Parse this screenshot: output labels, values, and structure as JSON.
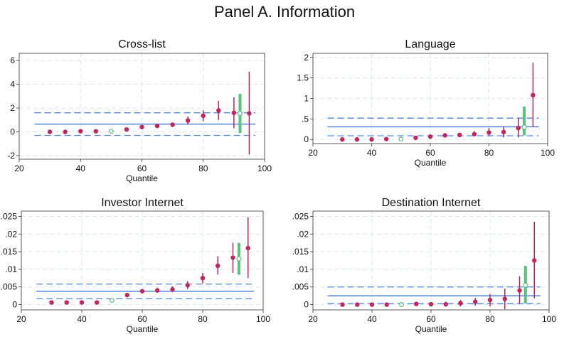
{
  "title": "Panel A. Information",
  "colors": {
    "point": "#c0255e",
    "ci": "#b4245e",
    "hollow": "#5cc47e",
    "highlight": "#56c47b",
    "line": "#4f86e0",
    "grid": "#dfe6ee"
  },
  "chart_data": [
    {
      "type": "scatter",
      "title": "Cross-list",
      "xlabel": "Quantile",
      "ylabel": "",
      "xlim": [
        20,
        100
      ],
      "ylim": [
        -2.3,
        6.6
      ],
      "xticks": [
        {
          "v": 20,
          "label": "20"
        },
        {
          "v": 40,
          "label": "40"
        },
        {
          "v": 60,
          "label": "60"
        },
        {
          "v": 80,
          "label": "80"
        },
        {
          "v": 100,
          "label": "100"
        }
      ],
      "yticks": [
        {
          "v": -2,
          "label": "-2"
        },
        {
          "v": 0,
          "label": "0"
        },
        {
          "v": 2,
          "label": "2"
        },
        {
          "v": 4,
          "label": "4"
        },
        {
          "v": 6,
          "label": "6"
        }
      ],
      "hline": {
        "y": 0.65,
        "lo": -0.3,
        "hi": 1.6,
        "x0": 25,
        "x1": 97
      },
      "points": [
        {
          "x": 30,
          "y": 0,
          "lo": 0,
          "hi": 0
        },
        {
          "x": 35,
          "y": 0,
          "lo": 0,
          "hi": 0
        },
        {
          "x": 40,
          "y": 0.05,
          "lo": 0.05,
          "hi": 0.05
        },
        {
          "x": 45,
          "y": 0.05,
          "lo": 0.05,
          "hi": 0.05
        },
        {
          "x": 50,
          "y": 0.05,
          "lo": 0.05,
          "hi": 0.05,
          "hollow": true
        },
        {
          "x": 55,
          "y": 0.2,
          "lo": 0.1,
          "hi": 0.3
        },
        {
          "x": 60,
          "y": 0.4,
          "lo": 0.3,
          "hi": 0.5
        },
        {
          "x": 65,
          "y": 0.5,
          "lo": 0.4,
          "hi": 0.6
        },
        {
          "x": 70,
          "y": 0.6,
          "lo": 0.45,
          "hi": 0.75
        },
        {
          "x": 75,
          "y": 0.95,
          "lo": 0.6,
          "hi": 1.3
        },
        {
          "x": 80,
          "y": 1.35,
          "lo": 0.9,
          "hi": 1.8
        },
        {
          "x": 85,
          "y": 1.8,
          "lo": 1.0,
          "hi": 2.6
        },
        {
          "x": 90,
          "y": 1.6,
          "lo": 0.3,
          "hi": 2.9
        },
        {
          "x": 92,
          "y": 1.55,
          "lo": -0.1,
          "hi": 3.2,
          "highlight": true
        },
        {
          "x": 95,
          "y": 1.55,
          "lo": -1.9,
          "hi": 5.05
        }
      ]
    },
    {
      "type": "scatter",
      "title": "Language",
      "xlabel": "Quantile",
      "ylabel": "",
      "xlim": [
        20,
        100
      ],
      "ylim": [
        -0.1,
        2.1
      ],
      "xticks": [
        {
          "v": 20,
          "label": "20"
        },
        {
          "v": 40,
          "label": "40"
        },
        {
          "v": 60,
          "label": "60"
        },
        {
          "v": 80,
          "label": "80"
        },
        {
          "v": 100,
          "label": "100"
        }
      ],
      "yticks": [
        {
          "v": 0,
          "label": "0"
        },
        {
          "v": 0.5,
          "label": ".5"
        },
        {
          "v": 1,
          "label": "1"
        },
        {
          "v": 1.5,
          "label": "1.5"
        },
        {
          "v": 2,
          "label": "2"
        }
      ],
      "hline": {
        "y": 0.31,
        "lo": 0.09,
        "hi": 0.52,
        "x0": 25,
        "x1": 97
      },
      "points": [
        {
          "x": 30,
          "y": 0,
          "lo": 0,
          "hi": 0
        },
        {
          "x": 35,
          "y": 0,
          "lo": 0,
          "hi": 0
        },
        {
          "x": 40,
          "y": 0,
          "lo": 0,
          "hi": 0
        },
        {
          "x": 45,
          "y": 0.01,
          "lo": 0.01,
          "hi": 0.01
        },
        {
          "x": 50,
          "y": 0.01,
          "lo": 0.01,
          "hi": 0.01,
          "hollow": true
        },
        {
          "x": 55,
          "y": 0.04,
          "lo": 0.03,
          "hi": 0.05
        },
        {
          "x": 60,
          "y": 0.07,
          "lo": 0.06,
          "hi": 0.08
        },
        {
          "x": 65,
          "y": 0.1,
          "lo": 0.08,
          "hi": 0.12
        },
        {
          "x": 70,
          "y": 0.11,
          "lo": 0.08,
          "hi": 0.14
        },
        {
          "x": 75,
          "y": 0.13,
          "lo": 0.08,
          "hi": 0.2
        },
        {
          "x": 80,
          "y": 0.17,
          "lo": 0.08,
          "hi": 0.28
        },
        {
          "x": 85,
          "y": 0.18,
          "lo": 0.05,
          "hi": 0.32
        },
        {
          "x": 90,
          "y": 0.28,
          "lo": 0.05,
          "hi": 0.52
        },
        {
          "x": 92,
          "y": 0.3,
          "lo": 0.1,
          "hi": 0.8,
          "highlight": true
        },
        {
          "x": 95,
          "y": 1.08,
          "lo": 0.3,
          "hi": 1.87
        }
      ]
    },
    {
      "type": "scatter",
      "title": "Investor Internet",
      "xlabel": "Quantile",
      "ylabel": "",
      "xlim": [
        20,
        100
      ],
      "ylim": [
        -0.0015,
        0.0265
      ],
      "xticks": [
        {
          "v": 20,
          "label": "20"
        },
        {
          "v": 40,
          "label": "40"
        },
        {
          "v": 60,
          "label": "60"
        },
        {
          "v": 80,
          "label": "80"
        },
        {
          "v": 100,
          "label": "100"
        }
      ],
      "yticks": [
        {
          "v": 0,
          "label": "0"
        },
        {
          "v": 0.005,
          "label": ".005"
        },
        {
          "v": 0.01,
          "label": ".01"
        },
        {
          "v": 0.015,
          "label": ".015"
        },
        {
          "v": 0.02,
          "label": ".02"
        },
        {
          "v": 0.025,
          "label": ".025"
        }
      ],
      "hline": {
        "y": 0.0038,
        "lo": 0.0017,
        "hi": 0.0058,
        "x0": 25,
        "x1": 97
      },
      "points": [
        {
          "x": 30,
          "y": 0.0006,
          "lo": 0.0006,
          "hi": 0.0006
        },
        {
          "x": 35,
          "y": 0.0006,
          "lo": 0.0006,
          "hi": 0.0006
        },
        {
          "x": 40,
          "y": 0.0006,
          "lo": 0.0006,
          "hi": 0.0006
        },
        {
          "x": 45,
          "y": 0.0006,
          "lo": 0.0006,
          "hi": 0.0006
        },
        {
          "x": 50,
          "y": 0.0012,
          "lo": 0.0012,
          "hi": 0.0012,
          "hollow": true
        },
        {
          "x": 55,
          "y": 0.0027,
          "lo": 0.0024,
          "hi": 0.003
        },
        {
          "x": 60,
          "y": 0.0038,
          "lo": 0.0034,
          "hi": 0.0042
        },
        {
          "x": 65,
          "y": 0.004,
          "lo": 0.0034,
          "hi": 0.0048
        },
        {
          "x": 70,
          "y": 0.0043,
          "lo": 0.0035,
          "hi": 0.0052
        },
        {
          "x": 75,
          "y": 0.0055,
          "lo": 0.0044,
          "hi": 0.0066
        },
        {
          "x": 80,
          "y": 0.0075,
          "lo": 0.006,
          "hi": 0.009
        },
        {
          "x": 85,
          "y": 0.011,
          "lo": 0.0085,
          "hi": 0.0137
        },
        {
          "x": 90,
          "y": 0.0133,
          "lo": 0.009,
          "hi": 0.0175
        },
        {
          "x": 92,
          "y": 0.013,
          "lo": 0.0085,
          "hi": 0.0175,
          "highlight": true
        },
        {
          "x": 95,
          "y": 0.016,
          "lo": 0.0075,
          "hi": 0.0248
        }
      ]
    },
    {
      "type": "scatter",
      "title": "Destination Internet",
      "xlabel": "Quantile",
      "ylabel": "",
      "xlim": [
        20,
        100
      ],
      "ylim": [
        -0.0015,
        0.0265
      ],
      "xticks": [
        {
          "v": 20,
          "label": "20"
        },
        {
          "v": 40,
          "label": "40"
        },
        {
          "v": 60,
          "label": "60"
        },
        {
          "v": 80,
          "label": "80"
        },
        {
          "v": 100,
          "label": "100"
        }
      ],
      "yticks": [
        {
          "v": 0,
          "label": "0"
        },
        {
          "v": 0.005,
          "label": ".005"
        },
        {
          "v": 0.01,
          "label": ".01"
        },
        {
          "v": 0.015,
          "label": ".015"
        },
        {
          "v": 0.02,
          "label": ".02"
        },
        {
          "v": 0.025,
          "label": ".025"
        }
      ],
      "hline": {
        "y": 0.0025,
        "lo": 0.0003,
        "hi": 0.005,
        "x0": 25,
        "x1": 97
      },
      "points": [
        {
          "x": 30,
          "y": 0,
          "lo": 0,
          "hi": 0
        },
        {
          "x": 35,
          "y": 0,
          "lo": 0,
          "hi": 0
        },
        {
          "x": 40,
          "y": 0,
          "lo": 0,
          "hi": 0
        },
        {
          "x": 45,
          "y": 0,
          "lo": 0,
          "hi": 0
        },
        {
          "x": 50,
          "y": 0,
          "lo": 0,
          "hi": 0,
          "hollow": true
        },
        {
          "x": 55,
          "y": 0.0002,
          "lo": 0.0001,
          "hi": 0.0004
        },
        {
          "x": 60,
          "y": 0.0001,
          "lo": -0.0003,
          "hi": 0.0005
        },
        {
          "x": 65,
          "y": 0.0001,
          "lo": -0.0006,
          "hi": 0.0008
        },
        {
          "x": 70,
          "y": 0.0004,
          "lo": -0.0005,
          "hi": 0.0013
        },
        {
          "x": 75,
          "y": 0.0008,
          "lo": -0.0003,
          "hi": 0.0019
        },
        {
          "x": 80,
          "y": 0.0013,
          "lo": -0.0005,
          "hi": 0.003
        },
        {
          "x": 85,
          "y": 0.0016,
          "lo": -0.0013,
          "hi": 0.0045
        },
        {
          "x": 90,
          "y": 0.004,
          "lo": 0.0002,
          "hi": 0.008
        },
        {
          "x": 92,
          "y": 0.0055,
          "lo": 0.0003,
          "hi": 0.011,
          "highlight": true
        },
        {
          "x": 95,
          "y": 0.0125,
          "lo": 0.0018,
          "hi": 0.0235
        }
      ]
    }
  ]
}
